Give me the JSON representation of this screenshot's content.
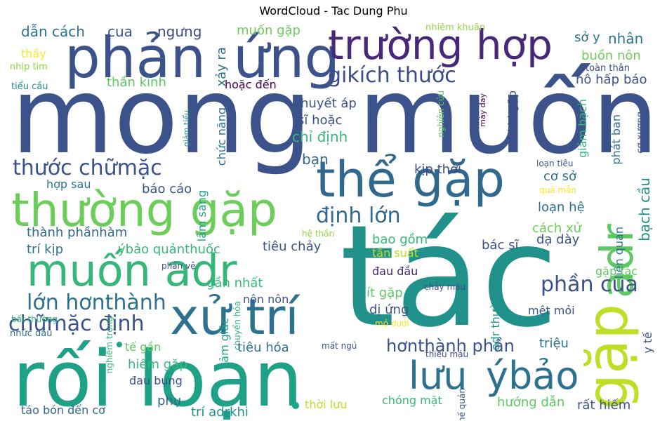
{
  "title": "WordCloud - Tac Dung Phu",
  "words": [
    {
      "text": "mong",
      "color": "#3b528b"
    },
    {
      "text": "muốn",
      "color": "#3b528b"
    },
    {
      "text": "tác",
      "color": "#21918c"
    },
    {
      "text": "rối loạn",
      "color": "#1fa187"
    },
    {
      "text": "thường gặp",
      "color": "#6ccd5a"
    },
    {
      "text": "phản",
      "color": "#3b528b"
    },
    {
      "text": "ứng",
      "color": "#3b528b"
    },
    {
      "text": "trường hợp",
      "color": "#482878"
    },
    {
      "text": "thể gặp",
      "color": "#31688e"
    },
    {
      "text": "muốn adr",
      "color": "#35b779"
    },
    {
      "text": "xử trí",
      "color": "#2c728e"
    },
    {
      "text": "gặp",
      "color": "#bddf26"
    },
    {
      "text": "adr",
      "color": "#5ec962"
    },
    {
      "text": "lưu",
      "color": "#2c728e"
    },
    {
      "text": "ýbảo",
      "color": "#2c728e"
    },
    {
      "text": "gikích thước",
      "color": "#3e4a89"
    },
    {
      "text": "thước chữmặc",
      "color": "#3b528b"
    },
    {
      "text": "định lớn",
      "color": "#31688e"
    },
    {
      "text": "lớn hơnthành",
      "color": "#2c728e"
    },
    {
      "text": "chữmặc định",
      "color": "#3b528b"
    },
    {
      "text": "phần cua",
      "color": "#3b528b"
    },
    {
      "text": "hơnthành phần",
      "color": "#3b528b"
    },
    {
      "text": "dẫn cách",
      "color": "#2c728e"
    },
    {
      "text": "cua",
      "color": "#3b528b"
    },
    {
      "text": "ngưng",
      "color": "#3e4a89"
    },
    {
      "text": "muốn gặp",
      "color": "#6ccd5a"
    },
    {
      "text": "nhiễm khuẩn",
      "color": "#90d743"
    },
    {
      "text": "sở y",
      "color": "#2c728e"
    },
    {
      "text": "nhân",
      "color": "#2c728e"
    },
    {
      "text": "buồn nôn",
      "color": "#6ccd5a"
    },
    {
      "text": "toàn thân",
      "color": "#3e4a89"
    },
    {
      "text": "hô hấp",
      "color": "#3b528b"
    },
    {
      "text": "báo",
      "color": "#3b528b"
    },
    {
      "text": "thầy",
      "color": "#fde725"
    },
    {
      "text": "nhịp tim",
      "color": "#90d743"
    },
    {
      "text": "tiểu cầu",
      "color": "#21918c"
    },
    {
      "text": "thần kinh",
      "color": "#5ec962"
    },
    {
      "text": "hoặc đến",
      "color": "#440154"
    },
    {
      "text": "xảy ra",
      "color": "#2c728e"
    },
    {
      "text": "huyết áp",
      "color": "#3b528b"
    },
    {
      "text": "sĩ hoặc",
      "color": "#3b528b"
    },
    {
      "text": "chỉ định",
      "color": "#35b779"
    },
    {
      "text": "bạn",
      "color": "#31688e"
    },
    {
      "text": "kịp thời",
      "color": "#3e4a89"
    },
    {
      "text": "cơ sở",
      "color": "#2c728e"
    },
    {
      "text": "loạn tiêu",
      "color": "#3b528b"
    },
    {
      "text": "phát ban",
      "color": "#2c728e"
    },
    {
      "text": "cơ xương",
      "color": "#3b528b"
    },
    {
      "text": "y tế",
      "color": "#3b528b"
    },
    {
      "text": "bạch cầu",
      "color": "#21918c"
    },
    {
      "text": "loạn hệ",
      "color": "#2c728e"
    },
    {
      "text": "quá mẫn",
      "color": "#fde725"
    },
    {
      "text": "hợp sau",
      "color": "#2c728e"
    },
    {
      "text": "báo cáo",
      "color": "#3b528b"
    },
    {
      "text": "lâm sàng",
      "color": "#1fa187"
    },
    {
      "text": "chức năng",
      "color": "#2c728e"
    },
    {
      "text": "thành phầnhàm",
      "color": "#31688e"
    },
    {
      "text": "trí kịp",
      "color": "#2c728e"
    },
    {
      "text": "ýbảo quảnthuốc",
      "color": "#35b779"
    },
    {
      "text": "tiêu chảy",
      "color": "#3b528b"
    },
    {
      "text": "bao gồm",
      "color": "#35b779"
    },
    {
      "text": "tần suất",
      "color": "#bddf26"
    },
    {
      "text": "hệ thần",
      "color": "#90d743"
    },
    {
      "text": "cách xử",
      "color": "#6ccd5a"
    },
    {
      "text": "bác sĩ",
      "color": "#3b528b"
    },
    {
      "text": "dạ dày",
      "color": "#3b528b"
    },
    {
      "text": "liên quan",
      "color": "#2c728e"
    },
    {
      "text": "gặp tác",
      "color": "#5ec962"
    },
    {
      "text": "gần nhất",
      "color": "#35b779"
    },
    {
      "text": "ít gặp",
      "color": "#5ec962"
    },
    {
      "text": "đau đầu",
      "color": "#482878"
    },
    {
      "text": "chảy máu",
      "color": "#3e4a89"
    },
    {
      "text": "nôn nôn",
      "color": "#3b528b"
    },
    {
      "text": "dị ứng",
      "color": "#3b528b"
    },
    {
      "text": "mệt mỏi",
      "color": "#3b528b"
    },
    {
      "text": "adr thường",
      "color": "#21918c"
    },
    {
      "text": "mỏ dưới",
      "color": "#fde725"
    },
    {
      "text": "phản vệ",
      "color": "#3b528b"
    },
    {
      "text": "bất thường",
      "color": "#35b779"
    },
    {
      "text": "nhức đầu",
      "color": "#2c728e"
    },
    {
      "text": "nghiêm trọng",
      "color": "#35b779"
    },
    {
      "text": "chuyển hóa",
      "color": "#35b779"
    },
    {
      "text": "cảm giác",
      "color": "#1fa187"
    },
    {
      "text": "tế gần",
      "color": "#5ec962"
    },
    {
      "text": "hiếm gặp",
      "color": "#35b779"
    },
    {
      "text": "đau bụng",
      "color": "#3b528b"
    },
    {
      "text": "tiêu hóa",
      "color": "#2c728e"
    },
    {
      "text": "mất ngủ",
      "color": "#3b528b"
    },
    {
      "text": "triệu",
      "color": "#2c728e"
    },
    {
      "text": "thiếu máu",
      "color": "#3e4a89"
    },
    {
      "text": "phụ",
      "color": "#31688e"
    },
    {
      "text": "táo bón đến cơ",
      "color": "#31688e"
    },
    {
      "text": "trí adrkhi",
      "color": "#21918c"
    },
    {
      "text": "thời lưu",
      "color": "#bddf26"
    },
    {
      "text": "chóng mặt",
      "color": "#35b779"
    },
    {
      "text": "hướng dẫn",
      "color": "#5ec962"
    },
    {
      "text": "rất hiếm",
      "color": "#3b528b"
    },
    {
      "text": "phế quản",
      "color": "#3b528b"
    },
    {
      "text": "adrkhi gặp",
      "color": "#3e4a89"
    },
    {
      "text": "giảm bạch",
      "color": "#35b779"
    },
    {
      "text": "nghiên cứu",
      "color": "#5ec962"
    },
    {
      "text": "mày đay",
      "color": "#440154"
    },
    {
      "text": "giảm tiểu",
      "color": "#21918c"
    }
  ]
}
